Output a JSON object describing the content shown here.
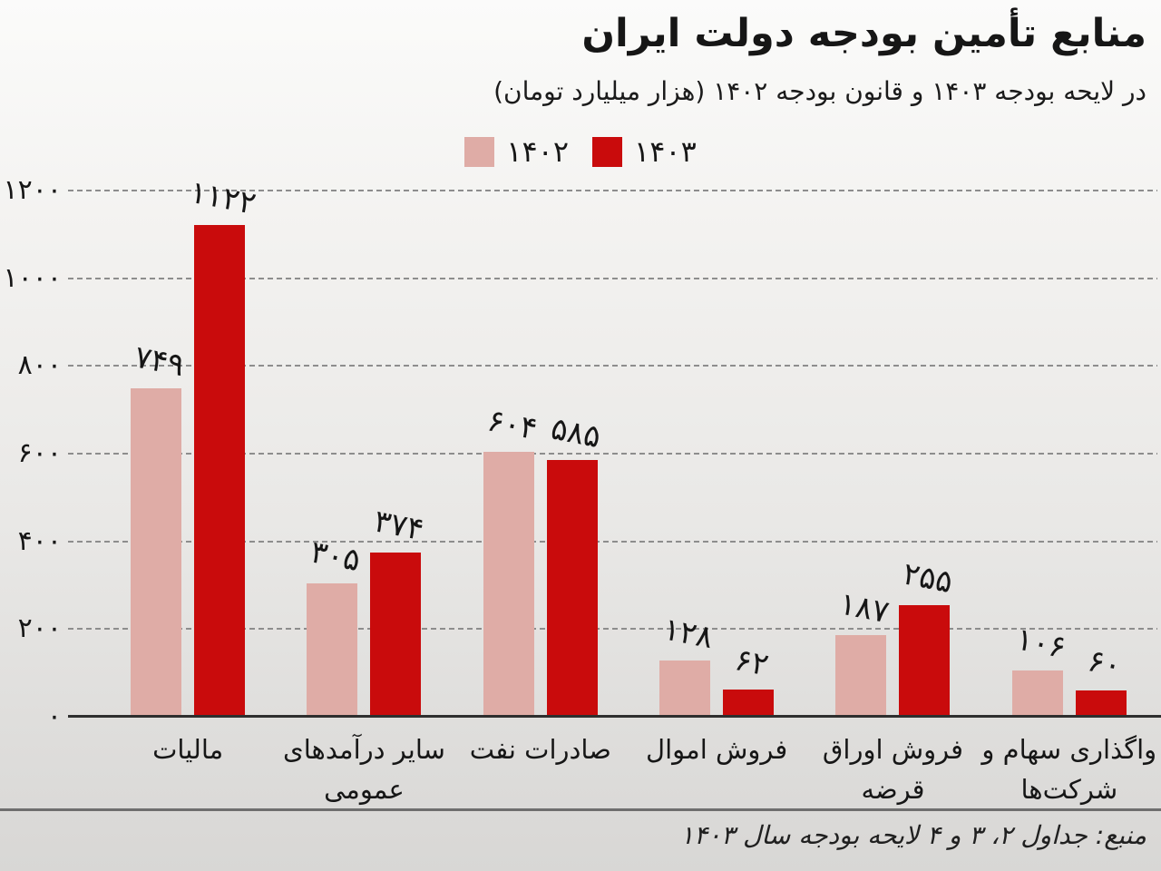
{
  "header": {
    "title": "منابع تأمین بودجه دولت ایران",
    "subtitle": "در لایحه بودجه ۱۴۰۳ و قانون بودجه ۱۴۰۲ (هزار میلیارد تومان)"
  },
  "footer": {
    "source": "منبع: جداول ۲، ۳ و ۴ لایحه بودجه سال ۱۴۰۳"
  },
  "colors": {
    "series_1402": "#dfaca6",
    "series_1403": "#c90b0c",
    "gridline": "#8d8d8d",
    "axis_line": "#2e2e2e",
    "text": "#161616"
  },
  "chart_data": {
    "type": "bar",
    "title": "منابع تأمین بودجه دولت ایران",
    "subtitle": "در لایحه بودجه ۱۴۰۳ و قانون بودجه ۱۴۰۲ (هزار میلیارد تومان)",
    "unit": "هزار میلیارد تومان",
    "legend_position": "top-center",
    "grid": "dashed-horizontal",
    "ylim": [
      0,
      1200
    ],
    "categories": [
      "مالیات",
      "سایر درآمدهای عمومی",
      "صادرات نفت",
      "فروش اموال",
      "فروش اوراق قرضه",
      "واگذاری سهام و شرکت‌ها"
    ],
    "category_lines": [
      [
        "مالیات"
      ],
      [
        "سایر درآمدهای",
        "عمومی"
      ],
      [
        "صادرات نفت"
      ],
      [
        "فروش اموال"
      ],
      [
        "فروش اوراق",
        "قرضه"
      ],
      [
        "واگذاری سهام و",
        "شرکت‌ها"
      ]
    ],
    "series": [
      {
        "id": "1402",
        "name": "۱۴۰۲",
        "color": "#dfaca6",
        "values": [
          749,
          305,
          604,
          128,
          187,
          106
        ],
        "value_labels": [
          "۷۴۹",
          "۳۰۵",
          "۶۰۴",
          "۱۲۸",
          "۱۸۷",
          "۱۰۶"
        ]
      },
      {
        "id": "1403",
        "name": "۱۴۰۳",
        "color": "#c90b0c",
        "values": [
          1122,
          374,
          585,
          62,
          255,
          60
        ],
        "value_labels": [
          "۱۱۲۲",
          "۳۷۴",
          "۵۸۵",
          "۶۲",
          "۲۵۵",
          "۶۰"
        ]
      }
    ],
    "y_axis": {
      "max": 1200,
      "ticks": [
        {
          "value": 1200,
          "label": "۱۲۰۰"
        },
        {
          "value": 1000,
          "label": "۱۰۰۰"
        },
        {
          "value": 800,
          "label": "۸۰۰"
        },
        {
          "value": 600,
          "label": "۶۰۰"
        },
        {
          "value": 400,
          "label": "۴۰۰"
        },
        {
          "value": 200,
          "label": "۲۰۰"
        },
        {
          "value": 0,
          "label": "۰"
        }
      ]
    }
  }
}
